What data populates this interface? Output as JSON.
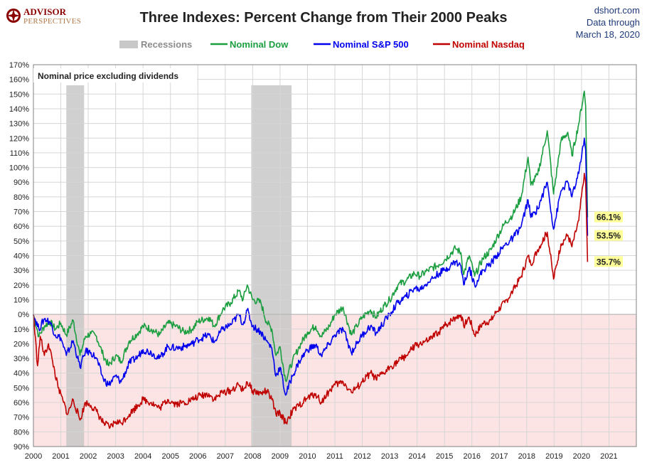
{
  "header": {
    "logo_line1": "ADVISOR",
    "logo_line2": "PERSPECTIVES",
    "source": "dshort.com",
    "data_through_line1": "Data through",
    "data_through_line2": "March 18, 2020"
  },
  "chart_data": {
    "type": "line",
    "title": "Three Indexes: Percent Change from Their 2000 Peaks",
    "annotation": "Nominal price excluding dividends",
    "xlabel": "",
    "ylabel": "",
    "xlim": [
      2000,
      2022
    ],
    "ylim": [
      -90,
      170
    ],
    "x_ticks": [
      "2000",
      "2001",
      "2002",
      "2003",
      "2004",
      "2005",
      "2006",
      "2007",
      "2008",
      "2009",
      "2010",
      "2011",
      "2012",
      "2013",
      "2014",
      "2015",
      "2016",
      "2017",
      "2018",
      "2019",
      "2020",
      "2021"
    ],
    "y_ticks": [
      170,
      160,
      150,
      140,
      130,
      120,
      110,
      100,
      90,
      80,
      70,
      60,
      50,
      40,
      30,
      20,
      10,
      0,
      -10,
      -20,
      -30,
      -40,
      -50,
      -60,
      -70,
      -80,
      -90
    ],
    "y_tick_labels": [
      "170%",
      "160%",
      "150%",
      "140%",
      "130%",
      "120%",
      "110%",
      "100%",
      "90%",
      "80%",
      "70%",
      "60%",
      "50%",
      "40%",
      "30%",
      "20%",
      "10%",
      "0%",
      "10%",
      "20%",
      "30%",
      "40%",
      "50%",
      "60%",
      "70%",
      "80%",
      "90%"
    ],
    "grid": true,
    "negative_zone_color": "#fde4e4",
    "legend_position": "top",
    "recessions": {
      "name": "Recessions",
      "color": "#c8c8c8",
      "periods": [
        [
          2001.2,
          2001.85
        ],
        [
          2007.95,
          2009.42
        ]
      ]
    },
    "series": [
      {
        "name": "Nominal Dow",
        "color": "#1a9e3f",
        "end_label": "66.1%",
        "points": [
          [
            2000.0,
            0
          ],
          [
            2000.2,
            -15
          ],
          [
            2000.4,
            -8
          ],
          [
            2000.6,
            -5
          ],
          [
            2000.8,
            -10
          ],
          [
            2001.0,
            -6
          ],
          [
            2001.2,
            -14
          ],
          [
            2001.45,
            -4
          ],
          [
            2001.7,
            -28
          ],
          [
            2001.9,
            -15
          ],
          [
            2002.1,
            -13
          ],
          [
            2002.3,
            -15
          ],
          [
            2002.55,
            -28
          ],
          [
            2002.75,
            -35
          ],
          [
            2003.0,
            -28
          ],
          [
            2003.2,
            -32
          ],
          [
            2003.5,
            -18
          ],
          [
            2003.8,
            -13
          ],
          [
            2004.0,
            -8
          ],
          [
            2004.3,
            -10
          ],
          [
            2004.6,
            -14
          ],
          [
            2004.9,
            -6
          ],
          [
            2005.2,
            -8
          ],
          [
            2005.5,
            -12
          ],
          [
            2005.8,
            -10
          ],
          [
            2006.0,
            -5
          ],
          [
            2006.4,
            -2
          ],
          [
            2006.6,
            -8
          ],
          [
            2006.9,
            3
          ],
          [
            2007.2,
            8
          ],
          [
            2007.5,
            16
          ],
          [
            2007.65,
            10
          ],
          [
            2007.8,
            20
          ],
          [
            2008.0,
            10
          ],
          [
            2008.3,
            8
          ],
          [
            2008.5,
            -5
          ],
          [
            2008.7,
            -10
          ],
          [
            2008.85,
            -28
          ],
          [
            2009.0,
            -22
          ],
          [
            2009.2,
            -45
          ],
          [
            2009.45,
            -32
          ],
          [
            2009.7,
            -22
          ],
          [
            2010.0,
            -12
          ],
          [
            2010.3,
            -8
          ],
          [
            2010.5,
            -15
          ],
          [
            2010.8,
            -8
          ],
          [
            2011.0,
            0
          ],
          [
            2011.3,
            5
          ],
          [
            2011.6,
            -14
          ],
          [
            2011.8,
            -8
          ],
          [
            2012.0,
            -2
          ],
          [
            2012.3,
            3
          ],
          [
            2012.5,
            -2
          ],
          [
            2012.8,
            6
          ],
          [
            2013.0,
            10
          ],
          [
            2013.3,
            20
          ],
          [
            2013.6,
            23
          ],
          [
            2013.9,
            28
          ],
          [
            2014.1,
            26
          ],
          [
            2014.4,
            30
          ],
          [
            2014.8,
            34
          ],
          [
            2015.0,
            37
          ],
          [
            2015.4,
            45
          ],
          [
            2015.6,
            42
          ],
          [
            2015.7,
            27
          ],
          [
            2015.9,
            40
          ],
          [
            2016.1,
            26
          ],
          [
            2016.4,
            38
          ],
          [
            2016.7,
            44
          ],
          [
            2016.9,
            52
          ],
          [
            2017.2,
            62
          ],
          [
            2017.5,
            68
          ],
          [
            2017.8,
            80
          ],
          [
            2018.05,
            107
          ],
          [
            2018.15,
            88
          ],
          [
            2018.4,
            95
          ],
          [
            2018.75,
            125
          ],
          [
            2018.98,
            82
          ],
          [
            2019.25,
            118
          ],
          [
            2019.5,
            124
          ],
          [
            2019.65,
            108
          ],
          [
            2019.9,
            130
          ],
          [
            2020.1,
            152
          ],
          [
            2020.15,
            142
          ],
          [
            2020.22,
            66.1
          ]
        ]
      },
      {
        "name": "Nominal S&P 500",
        "color": "#0000ee",
        "end_label": "53.5%",
        "points": [
          [
            2000.0,
            0
          ],
          [
            2000.2,
            -10
          ],
          [
            2000.4,
            -3
          ],
          [
            2000.6,
            -5
          ],
          [
            2000.8,
            -14
          ],
          [
            2001.0,
            -16
          ],
          [
            2001.2,
            -28
          ],
          [
            2001.45,
            -18
          ],
          [
            2001.7,
            -36
          ],
          [
            2001.9,
            -25
          ],
          [
            2002.1,
            -26
          ],
          [
            2002.3,
            -30
          ],
          [
            2002.55,
            -44
          ],
          [
            2002.75,
            -48
          ],
          [
            2003.0,
            -42
          ],
          [
            2003.2,
            -46
          ],
          [
            2003.5,
            -33
          ],
          [
            2003.8,
            -29
          ],
          [
            2004.0,
            -24
          ],
          [
            2004.3,
            -26
          ],
          [
            2004.6,
            -30
          ],
          [
            2004.9,
            -22
          ],
          [
            2005.2,
            -23
          ],
          [
            2005.5,
            -22
          ],
          [
            2005.8,
            -20
          ],
          [
            2006.0,
            -17
          ],
          [
            2006.4,
            -14
          ],
          [
            2006.6,
            -19
          ],
          [
            2006.9,
            -10
          ],
          [
            2007.2,
            -7
          ],
          [
            2007.5,
            0
          ],
          [
            2007.65,
            -7
          ],
          [
            2007.8,
            3
          ],
          [
            2008.0,
            -8
          ],
          [
            2008.3,
            -12
          ],
          [
            2008.5,
            -18
          ],
          [
            2008.7,
            -23
          ],
          [
            2008.85,
            -42
          ],
          [
            2009.0,
            -36
          ],
          [
            2009.2,
            -55
          ],
          [
            2009.45,
            -42
          ],
          [
            2009.7,
            -32
          ],
          [
            2010.0,
            -24
          ],
          [
            2010.3,
            -21
          ],
          [
            2010.5,
            -28
          ],
          [
            2010.8,
            -20
          ],
          [
            2011.0,
            -14
          ],
          [
            2011.3,
            -10
          ],
          [
            2011.6,
            -26
          ],
          [
            2011.8,
            -20
          ],
          [
            2012.0,
            -14
          ],
          [
            2012.3,
            -8
          ],
          [
            2012.5,
            -13
          ],
          [
            2012.8,
            -5
          ],
          [
            2013.0,
            0
          ],
          [
            2013.3,
            8
          ],
          [
            2013.6,
            12
          ],
          [
            2013.9,
            18
          ],
          [
            2014.1,
            17
          ],
          [
            2014.4,
            22
          ],
          [
            2014.8,
            28
          ],
          [
            2015.0,
            30
          ],
          [
            2015.4,
            36
          ],
          [
            2015.6,
            33
          ],
          [
            2015.7,
            20
          ],
          [
            2015.9,
            32
          ],
          [
            2016.1,
            20
          ],
          [
            2016.4,
            30
          ],
          [
            2016.7,
            35
          ],
          [
            2016.9,
            40
          ],
          [
            2017.2,
            47
          ],
          [
            2017.5,
            52
          ],
          [
            2017.8,
            60
          ],
          [
            2018.05,
            78
          ],
          [
            2018.15,
            66
          ],
          [
            2018.4,
            72
          ],
          [
            2018.75,
            90
          ],
          [
            2018.98,
            58
          ],
          [
            2019.25,
            84
          ],
          [
            2019.5,
            90
          ],
          [
            2019.65,
            80
          ],
          [
            2019.9,
            96
          ],
          [
            2020.1,
            120
          ],
          [
            2020.15,
            112
          ],
          [
            2020.22,
            53.5
          ]
        ]
      },
      {
        "name": "Nominal Nasdaq",
        "color": "#c00000",
        "end_label": "35.7%",
        "points": [
          [
            2000.0,
            0
          ],
          [
            2000.15,
            -35
          ],
          [
            2000.25,
            -15
          ],
          [
            2000.4,
            -28
          ],
          [
            2000.55,
            -20
          ],
          [
            2000.7,
            -32
          ],
          [
            2000.9,
            -50
          ],
          [
            2001.1,
            -60
          ],
          [
            2001.25,
            -68
          ],
          [
            2001.45,
            -58
          ],
          [
            2001.7,
            -72
          ],
          [
            2001.9,
            -60
          ],
          [
            2002.1,
            -62
          ],
          [
            2002.3,
            -66
          ],
          [
            2002.55,
            -74
          ],
          [
            2002.8,
            -77
          ],
          [
            2003.0,
            -73
          ],
          [
            2003.2,
            -74
          ],
          [
            2003.5,
            -68
          ],
          [
            2003.8,
            -62
          ],
          [
            2004.0,
            -58
          ],
          [
            2004.3,
            -60
          ],
          [
            2004.6,
            -64
          ],
          [
            2004.9,
            -58
          ],
          [
            2005.2,
            -61
          ],
          [
            2005.5,
            -60
          ],
          [
            2005.8,
            -58
          ],
          [
            2006.0,
            -56
          ],
          [
            2006.4,
            -54
          ],
          [
            2006.6,
            -58
          ],
          [
            2006.9,
            -53
          ],
          [
            2007.2,
            -52
          ],
          [
            2007.5,
            -48
          ],
          [
            2007.65,
            -52
          ],
          [
            2007.8,
            -46
          ],
          [
            2008.0,
            -52
          ],
          [
            2008.3,
            -54
          ],
          [
            2008.5,
            -52
          ],
          [
            2008.7,
            -58
          ],
          [
            2008.85,
            -68
          ],
          [
            2009.0,
            -67
          ],
          [
            2009.2,
            -74
          ],
          [
            2009.45,
            -66
          ],
          [
            2009.7,
            -62
          ],
          [
            2010.0,
            -57
          ],
          [
            2010.3,
            -54
          ],
          [
            2010.5,
            -60
          ],
          [
            2010.8,
            -52
          ],
          [
            2011.0,
            -48
          ],
          [
            2011.3,
            -46
          ],
          [
            2011.6,
            -53
          ],
          [
            2011.8,
            -50
          ],
          [
            2012.0,
            -46
          ],
          [
            2012.3,
            -40
          ],
          [
            2012.5,
            -44
          ],
          [
            2012.8,
            -40
          ],
          [
            2013.0,
            -36
          ],
          [
            2013.3,
            -32
          ],
          [
            2013.6,
            -28
          ],
          [
            2013.9,
            -22
          ],
          [
            2014.1,
            -20
          ],
          [
            2014.4,
            -18
          ],
          [
            2014.8,
            -12
          ],
          [
            2015.0,
            -8
          ],
          [
            2015.4,
            -2
          ],
          [
            2015.6,
            0
          ],
          [
            2015.7,
            -8
          ],
          [
            2015.9,
            -2
          ],
          [
            2016.1,
            -14
          ],
          [
            2016.4,
            -6
          ],
          [
            2016.7,
            -4
          ],
          [
            2016.9,
            2
          ],
          [
            2017.2,
            8
          ],
          [
            2017.5,
            16
          ],
          [
            2017.8,
            26
          ],
          [
            2018.05,
            40
          ],
          [
            2018.15,
            34
          ],
          [
            2018.4,
            44
          ],
          [
            2018.75,
            56
          ],
          [
            2018.98,
            24
          ],
          [
            2019.25,
            48
          ],
          [
            2019.5,
            54
          ],
          [
            2019.65,
            46
          ],
          [
            2019.9,
            64
          ],
          [
            2020.1,
            96
          ],
          [
            2020.15,
            90
          ],
          [
            2020.22,
            35.7
          ]
        ]
      }
    ]
  }
}
